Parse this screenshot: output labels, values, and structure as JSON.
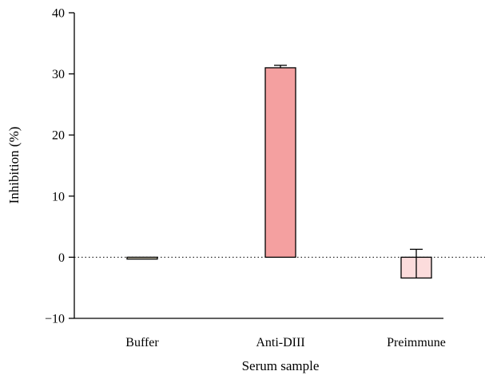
{
  "chart_data": {
    "type": "bar",
    "title": "",
    "xlabel": "Serum sample",
    "ylabel": "Inhibition (%)",
    "ylim": [
      -10,
      40
    ],
    "yticks": [
      -10,
      0,
      10,
      20,
      30,
      40
    ],
    "ytick_labels": [
      "−10",
      "0",
      "10",
      "20",
      "30",
      "40"
    ],
    "categories": [
      "Buffer",
      "Anti-DIII",
      "Preimmune"
    ],
    "values": [
      -0.3,
      31.0,
      -3.4
    ],
    "error": [
      0,
      0.4,
      4.7
    ],
    "bar_colors": [
      "#e8e2c8",
      "#f4a0a0",
      "#fcdcdc"
    ],
    "zero_line": "dotted",
    "grid": false,
    "legend": "none"
  }
}
